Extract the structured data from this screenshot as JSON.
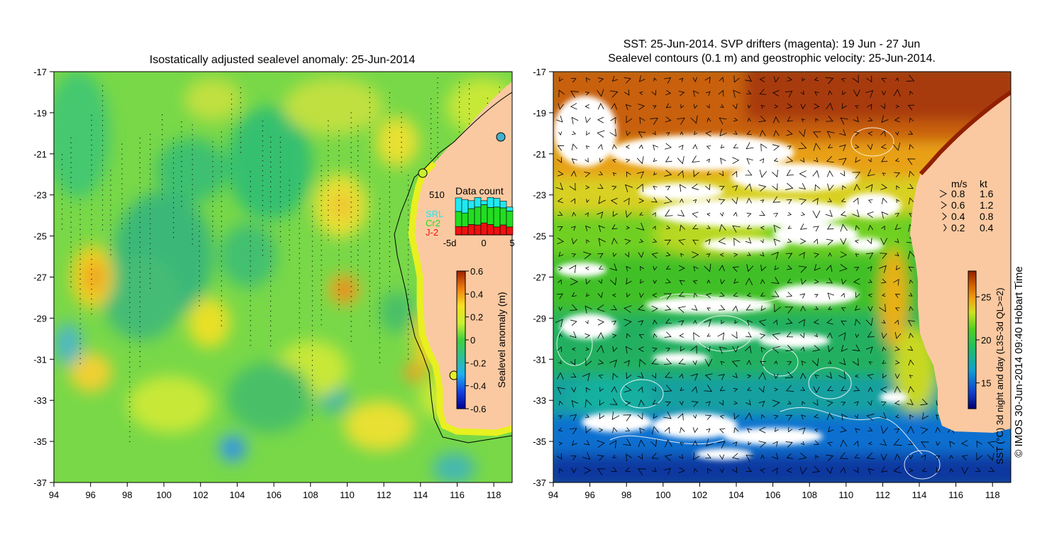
{
  "left_panel": {
    "title": "Isostatically adjusted sealevel anomaly: 25-Jun-2014",
    "colorbar": {
      "label": "Sealevel anomaly (m)",
      "ticks": [
        "0.6",
        "0.4",
        "0.2",
        "0",
        "-0.2",
        "-0.4",
        "-0.6"
      ],
      "min": -0.6,
      "max": 0.6
    },
    "data_count": {
      "title": "Data count",
      "max_label": "510",
      "x_labels": [
        "-5d",
        "0",
        "5"
      ],
      "legend": [
        {
          "label": "SRL",
          "color": "#22e8f0"
        },
        {
          "label": "Cr2",
          "color": "#22dd22"
        },
        {
          "label": "J-2",
          "color": "#ee1111"
        }
      ],
      "bars": [
        {
          "srl": 0.34,
          "cr2": 0.38,
          "j2": 0.21
        },
        {
          "srl": 0.34,
          "cr2": 0.34,
          "j2": 0.21
        },
        {
          "srl": 0.2,
          "cr2": 0.4,
          "j2": 0.26
        },
        {
          "srl": 0.24,
          "cr2": 0.45,
          "j2": 0.25
        },
        {
          "srl": 0.1,
          "cr2": 0.46,
          "j2": 0.3
        },
        {
          "srl": 0.25,
          "cr2": 0.43,
          "j2": 0.26
        },
        {
          "srl": 0.22,
          "cr2": 0.5,
          "j2": 0.2
        },
        {
          "srl": 0.17,
          "cr2": 0.43,
          "j2": 0.25
        },
        {
          "srl": 0.1,
          "cr2": 0.4,
          "j2": 0.2
        }
      ]
    }
  },
  "right_panel": {
    "title_line1": "SST: 25-Jun-2014. SVP drifters (magenta): 19 Jun - 27 Jun",
    "title_line2": "Sealevel contours (0.1 m) and geostrophic velocity: 25-Jun-2014.",
    "colorbar": {
      "label": "SST (°C) 3d night and day (L3S-3d QL>=2)",
      "ticks": [
        "25",
        "20",
        "15"
      ],
      "min": 12,
      "max": 28
    },
    "velocity_legend": {
      "header_ms": "m/s",
      "header_kt": "kt",
      "rows": [
        {
          "ms": "0.8",
          "kt": "1.6"
        },
        {
          "ms": "0.6",
          "kt": "1.2"
        },
        {
          "ms": "0.4",
          "kt": "0.8"
        },
        {
          "ms": "0.2",
          "kt": "0.4"
        }
      ]
    },
    "copyright": "© IMOS 30-Jun-2014 09:40 Hobart Time"
  },
  "axes": {
    "x_ticks": [
      "94",
      "96",
      "98",
      "100",
      "102",
      "104",
      "106",
      "108",
      "110",
      "112",
      "114",
      "116",
      "118"
    ],
    "y_ticks": [
      "-17",
      "-19",
      "-21",
      "-23",
      "-25",
      "-27",
      "-29",
      "-31",
      "-33",
      "-35",
      "-37"
    ],
    "lon_range": [
      94,
      119
    ],
    "lat_range": [
      -37,
      -17
    ]
  },
  "colors": {
    "land": "#fbc9a1",
    "cloud": "#ffffff"
  }
}
